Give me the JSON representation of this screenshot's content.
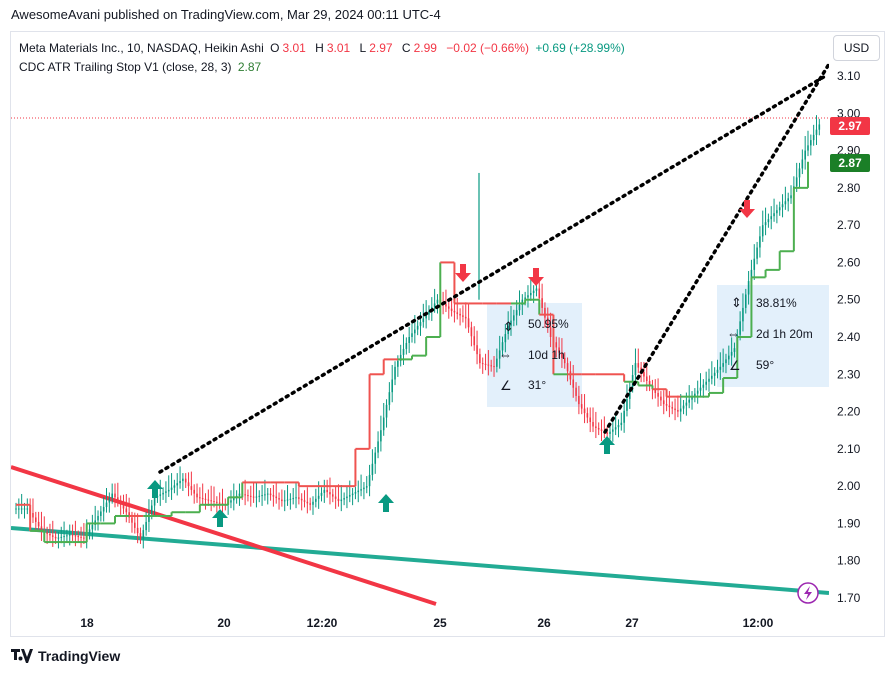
{
  "header": {
    "published": "AwesomeAvani published on TradingView.com, Mar 29, 2024 00:11 UTC-4"
  },
  "legend": {
    "symbol": "Meta Materials Inc., 10, NASDAQ, Heikin Ashi",
    "o_label": "O",
    "o_value": "3.01",
    "h_label": "H",
    "h_value": "3.01",
    "l_label": "L",
    "l_value": "2.97",
    "c_label": "C",
    "c_value": "2.99",
    "change": "−0.02 (−0.66%)",
    "change2": "+0.69 (+28.99%)",
    "indicator": "CDC ATR Trailing Stop V1 (close, 28, 3)",
    "indicator_value": "2.87"
  },
  "currency": "USD",
  "footer": {
    "brand": "TradingView"
  },
  "colors": {
    "up": "#089981",
    "down": "#f23645",
    "trail_up": "#4caf50",
    "trail_down": "#ef5350",
    "teal_line": "#22ab94",
    "red_line": "#f23645",
    "measure_bg": "#e3f0fb"
  },
  "chart_data": {
    "type": "line",
    "title": "Meta Materials Inc., 10, NASDAQ, Heikin Ashi",
    "ylim": [
      1.66,
      3.14
    ],
    "y_ticks": [
      "3.10",
      "3.00",
      "2.90",
      "2.80",
      "2.70",
      "2.60",
      "2.50",
      "2.40",
      "2.30",
      "2.20",
      "2.10",
      "2.00",
      "1.90",
      "1.80",
      "1.70"
    ],
    "x_ticks": [
      "18",
      "20",
      "12:20",
      "25",
      "26",
      "27",
      "12:00"
    ],
    "last_price_label": "2.97",
    "trail_stop_label": "2.87",
    "series": [
      {
        "name": "Meta Materials Inc.",
        "values": [
          1.94,
          1.88,
          1.86,
          1.87,
          1.86,
          1.92,
          1.98,
          1.93,
          1.86,
          1.97,
          1.99,
          2.02,
          1.97,
          1.96,
          1.95,
          1.98,
          1.97,
          1.98,
          1.96,
          1.97,
          1.95,
          1.99,
          1.96,
          1.98,
          2.0,
          2.15,
          2.32,
          2.4,
          2.45,
          2.5,
          2.47,
          2.45,
          2.33,
          2.32,
          2.43,
          2.5,
          2.53,
          2.4,
          2.33,
          2.22,
          2.16,
          2.14,
          2.17,
          2.33,
          2.27,
          2.22,
          2.2,
          2.24,
          2.28,
          2.32,
          2.37,
          2.55,
          2.7,
          2.74,
          2.78,
          2.9,
          2.97
        ]
      },
      {
        "name": "CDC ATR Trailing Stop V1",
        "values": [
          1.95,
          1.88,
          1.85,
          1.85,
          1.85,
          1.9,
          1.9,
          1.92,
          1.92,
          1.92,
          1.92,
          1.93,
          1.93,
          1.95,
          1.95,
          1.97,
          2.01,
          2.01,
          2.01,
          2.01,
          2.0,
          2.0,
          2.0,
          2.0,
          2.1,
          2.3,
          2.34,
          2.34,
          2.35,
          2.4,
          2.6,
          2.49,
          2.49,
          2.49,
          2.49,
          2.49,
          2.5,
          2.46,
          2.3,
          2.3,
          2.3,
          2.3,
          2.3,
          2.28,
          2.27,
          2.26,
          2.24,
          2.24,
          2.24,
          2.25,
          2.29,
          2.4,
          2.56,
          2.58,
          2.63,
          2.8,
          2.87
        ]
      }
    ],
    "drawings": [
      {
        "type": "measure",
        "price_pct": "50.95%",
        "duration": "10d 1h",
        "angle": "31°"
      },
      {
        "type": "measure",
        "price_pct": "38.81%",
        "duration": "2d 1h 20m",
        "angle": "59°"
      }
    ]
  }
}
